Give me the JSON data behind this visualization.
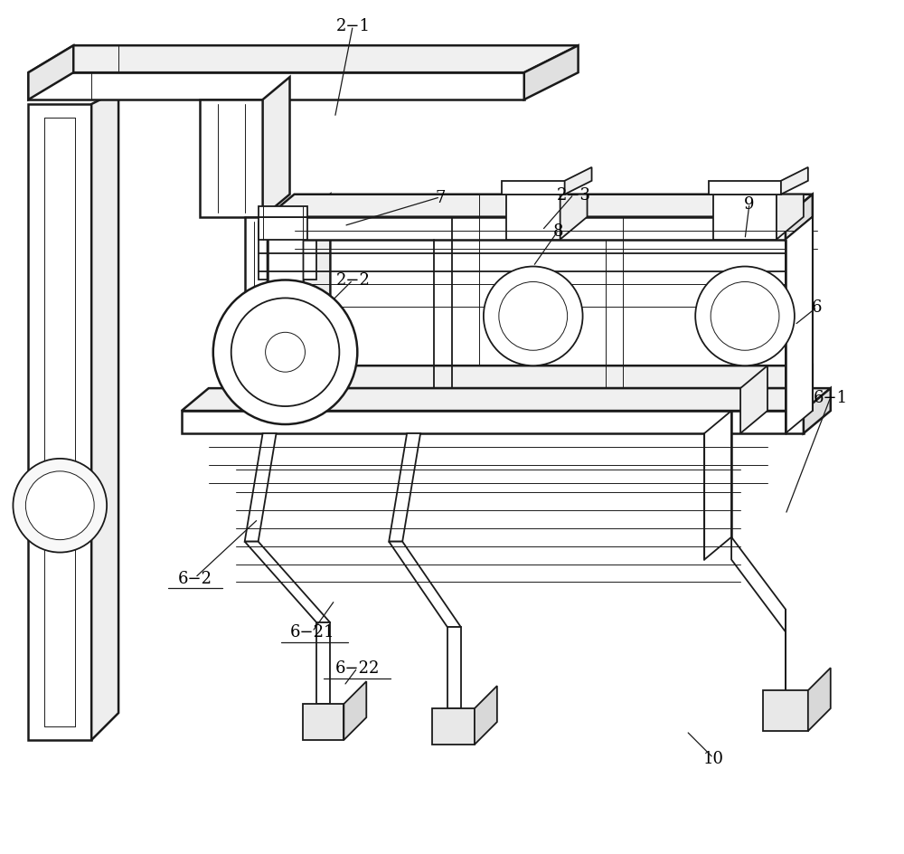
{
  "background_color": "#ffffff",
  "line_color": "#1a1a1a",
  "label_color": "#000000",
  "figsize": [
    10.0,
    9.45
  ],
  "dpi": 100,
  "lw_main": 1.3,
  "lw_thin": 0.7,
  "lw_thick": 1.8,
  "fs_label": 13
}
